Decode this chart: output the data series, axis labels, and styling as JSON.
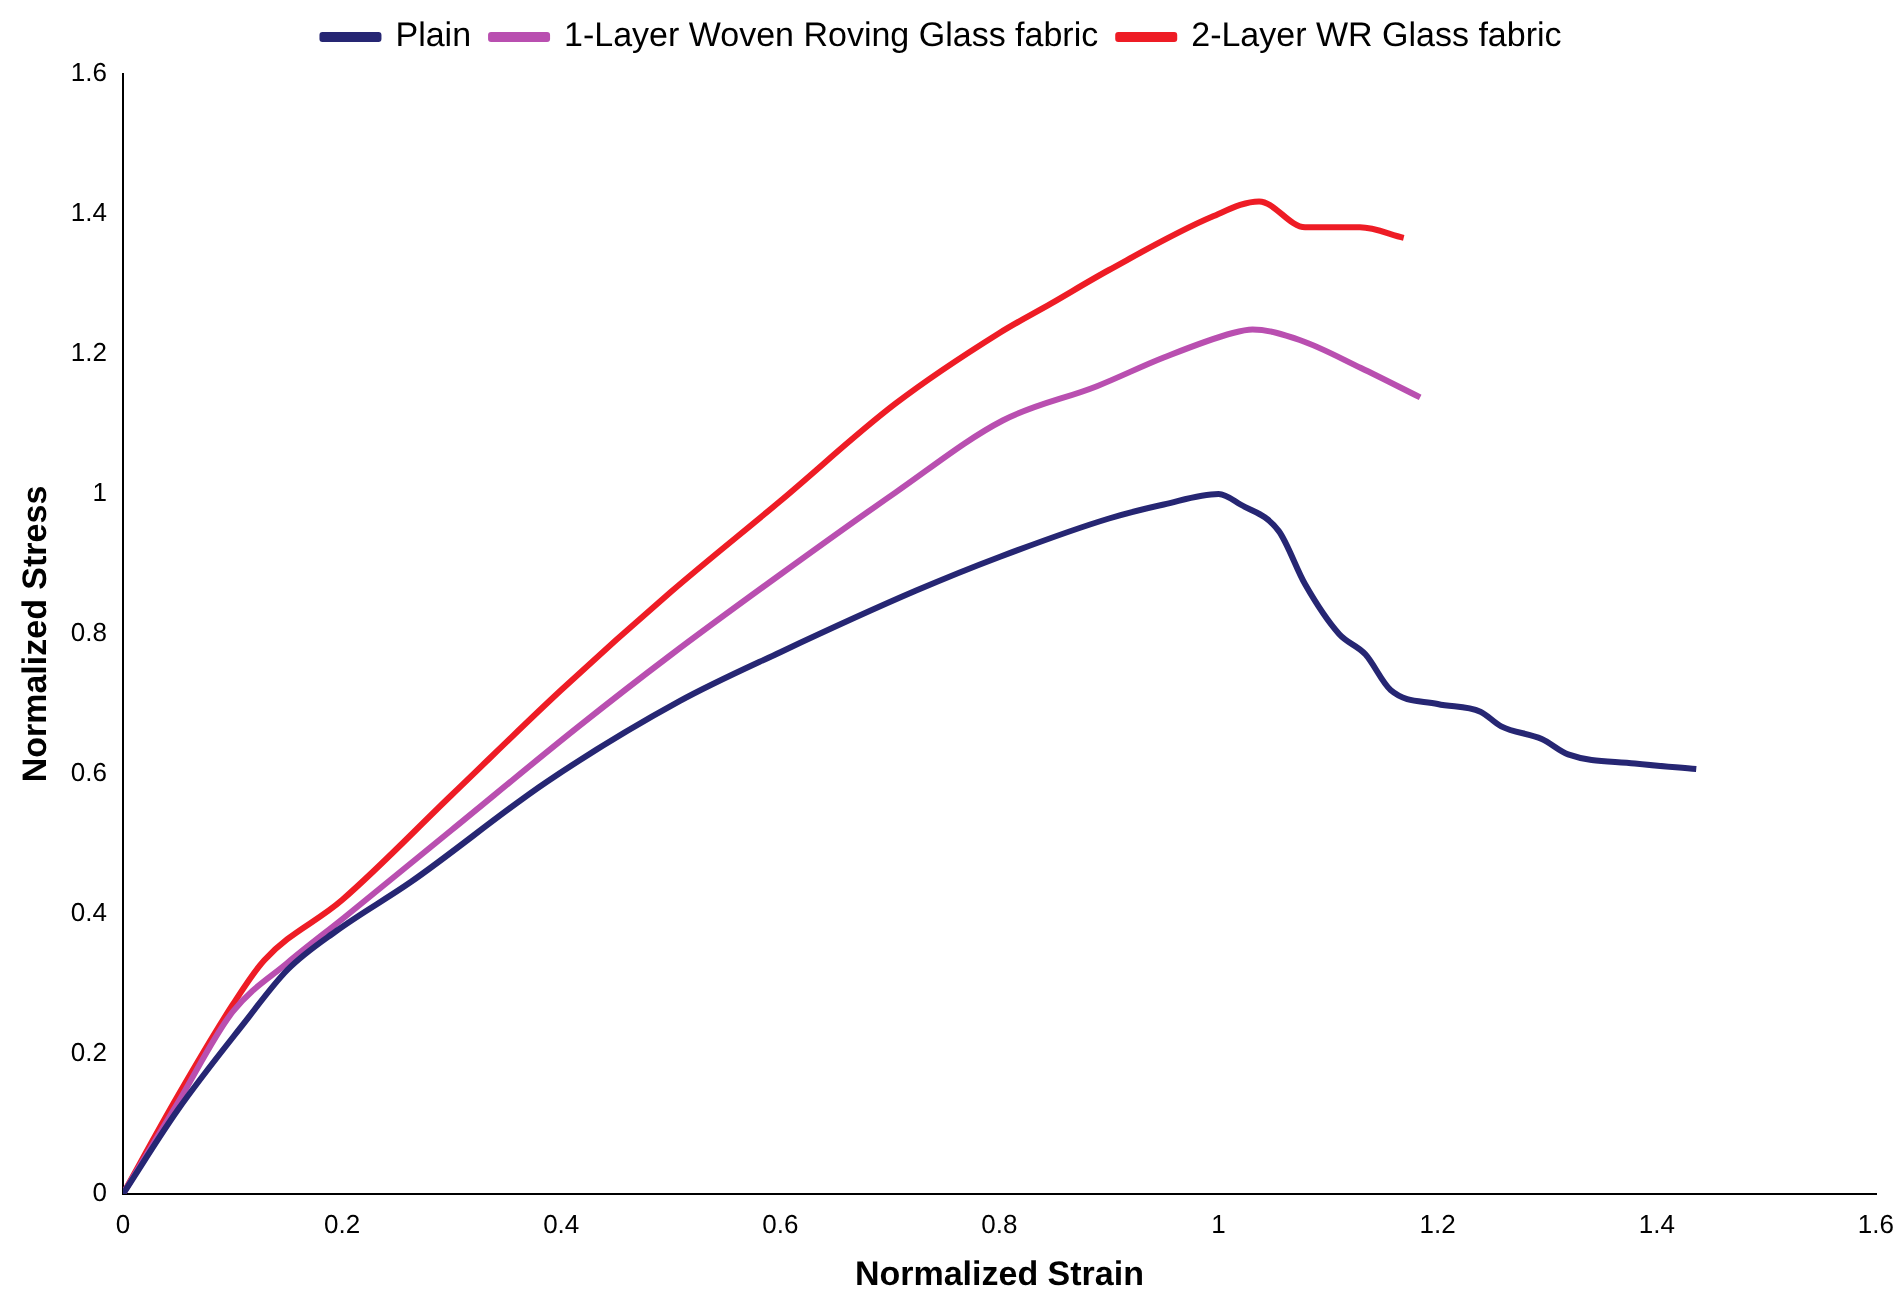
{
  "chart_data": {
    "type": "line",
    "xlabel": "Normalized Strain",
    "ylabel": "Normalized Stress",
    "legend": "top",
    "grid": false,
    "marker": "none",
    "line_style": "solid",
    "xlim": [
      0,
      1.6
    ],
    "xticks": [
      0,
      0.2,
      0.4,
      0.6,
      0.8,
      1,
      1.2,
      1.4,
      1.6
    ],
    "ylim": [
      0,
      1.6
    ],
    "yticks": [
      0,
      0.2,
      0.4,
      0.6,
      0.8,
      1,
      1.2,
      1.4,
      1.6
    ],
    "series": [
      {
        "name": "Plain",
        "color": "#262673",
        "x": [
          0,
          0.05,
          0.11,
          0.15,
          0.195,
          0.263,
          0.387,
          0.508,
          0.6,
          0.724,
          0.8,
          0.9,
          0.95,
          1.0,
          1.02,
          1.055,
          1.079,
          1.11,
          1.134,
          1.157,
          1.2,
          1.239,
          1.258,
          1.295,
          1.319,
          1.38,
          1.436
        ],
        "values": [
          0,
          0.12,
          0.243,
          0.32,
          0.376,
          0.446,
          0.589,
          0.704,
          0.774,
          0.862,
          0.91,
          0.965,
          0.985,
          1.0,
          0.985,
          0.947,
          0.871,
          0.8,
          0.771,
          0.72,
          0.7,
          0.689,
          0.668,
          0.65,
          0.628,
          0.615,
          0.607
        ]
      },
      {
        "name": "1-Layer Woven Roving Glass fabric",
        "color": "#b94fb0",
        "x": [
          0,
          0.05,
          0.1,
          0.15,
          0.202,
          0.3,
          0.416,
          0.5,
          0.6,
          0.705,
          0.803,
          0.889,
          0.95,
          1.013,
          1.031,
          1.074,
          1.13,
          1.184
        ],
        "values": [
          0,
          0.13,
          0.26,
          0.33,
          0.395,
          0.52,
          0.668,
          0.77,
          0.885,
          1.002,
          1.105,
          1.154,
          1.195,
          1.23,
          1.235,
          1.22,
          1.18,
          1.138
        ]
      },
      {
        "name": "2-Layer WR Glass fabric",
        "color": "#ee1c25",
        "x": [
          0,
          0.05,
          0.1,
          0.129,
          0.2,
          0.3,
          0.4,
          0.5,
          0.6,
          0.705,
          0.8,
          0.847,
          0.9,
          0.994,
          1.037,
          1.079,
          1.129,
          1.169
        ],
        "values": [
          0,
          0.14,
          0.27,
          0.334,
          0.42,
          0.57,
          0.72,
          0.86,
          0.99,
          1.129,
          1.23,
          1.272,
          1.32,
          1.396,
          1.418,
          1.381,
          1.381,
          1.366
        ]
      }
    ]
  }
}
